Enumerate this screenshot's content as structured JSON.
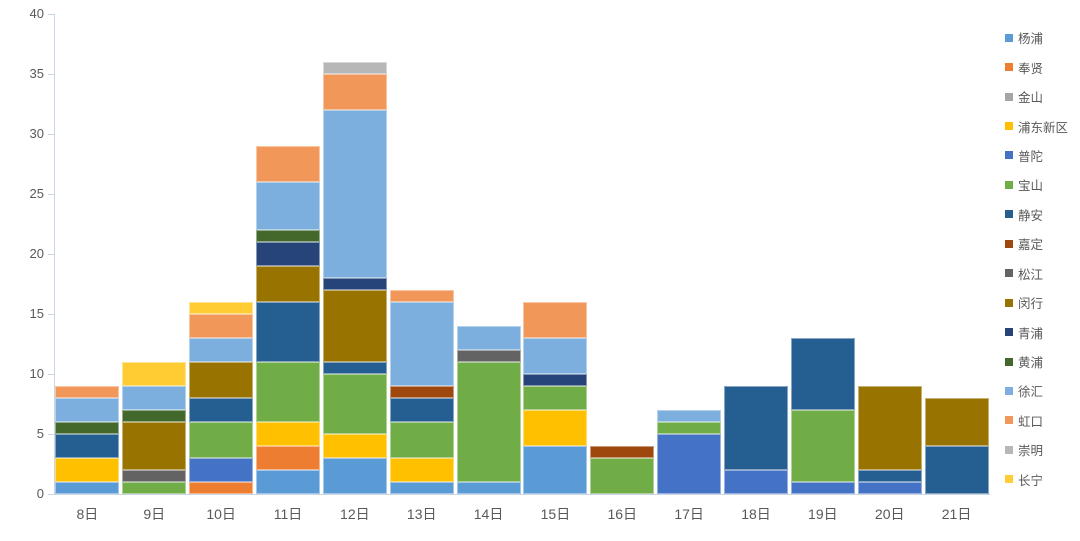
{
  "chart_data": {
    "type": "bar",
    "stacked": true,
    "title": "",
    "xlabel": "",
    "ylabel": "",
    "categories": [
      "8日",
      "9日",
      "10日",
      "11日",
      "12日",
      "13日",
      "14日",
      "15日",
      "16日",
      "17日",
      "18日",
      "19日",
      "20日",
      "21日"
    ],
    "series": [
      {
        "name": "杨浦",
        "color": "#5B9BD5",
        "values": [
          1,
          0,
          0,
          2,
          3,
          1,
          1,
          4,
          0,
          0,
          0,
          0,
          0,
          0
        ]
      },
      {
        "name": "奉贤",
        "color": "#ED7D31",
        "values": [
          0,
          0,
          1,
          2,
          0,
          0,
          0,
          0,
          0,
          0,
          0,
          0,
          0,
          0
        ]
      },
      {
        "name": "金山",
        "color": "#A5A5A5",
        "values": [
          0,
          0,
          0,
          0,
          0,
          0,
          0,
          0,
          0,
          0,
          0,
          0,
          0,
          0
        ]
      },
      {
        "name": "浦东新区",
        "color": "#FFC000",
        "values": [
          2,
          0,
          0,
          2,
          2,
          2,
          0,
          3,
          0,
          0,
          0,
          0,
          0,
          0
        ]
      },
      {
        "name": "普陀",
        "color": "#4472C4",
        "values": [
          0,
          0,
          2,
          0,
          0,
          0,
          0,
          0,
          0,
          5,
          2,
          1,
          1,
          0
        ]
      },
      {
        "name": "宝山",
        "color": "#70AD47",
        "values": [
          0,
          1,
          3,
          5,
          5,
          3,
          10,
          2,
          3,
          1,
          0,
          6,
          0,
          0
        ]
      },
      {
        "name": "静安",
        "color": "#255E91",
        "values": [
          2,
          0,
          2,
          5,
          1,
          2,
          0,
          0,
          0,
          0,
          7,
          6,
          1,
          4
        ]
      },
      {
        "name": "嘉定",
        "color": "#9E480E",
        "values": [
          0,
          0,
          0,
          0,
          0,
          1,
          0,
          0,
          1,
          0,
          0,
          0,
          0,
          0
        ]
      },
      {
        "name": "松江",
        "color": "#636363",
        "values": [
          0,
          1,
          0,
          0,
          0,
          0,
          1,
          0,
          0,
          0,
          0,
          0,
          0,
          0
        ]
      },
      {
        "name": "闵行",
        "color": "#997300",
        "values": [
          0,
          4,
          3,
          3,
          6,
          0,
          0,
          0,
          0,
          0,
          0,
          0,
          7,
          4
        ]
      },
      {
        "name": "青浦",
        "color": "#264478",
        "values": [
          0,
          0,
          0,
          2,
          1,
          0,
          0,
          1,
          0,
          0,
          0,
          0,
          0,
          0
        ]
      },
      {
        "name": "黄浦",
        "color": "#43682B",
        "values": [
          1,
          1,
          0,
          1,
          0,
          0,
          0,
          0,
          0,
          0,
          0,
          0,
          0,
          0
        ]
      },
      {
        "name": "徐汇",
        "color": "#7CAFDD",
        "values": [
          2,
          2,
          2,
          4,
          14,
          7,
          2,
          3,
          0,
          1,
          0,
          0,
          0,
          0
        ]
      },
      {
        "name": "虹口",
        "color": "#F1975A",
        "values": [
          1,
          0,
          2,
          3,
          3,
          1,
          0,
          3,
          0,
          0,
          0,
          0,
          0,
          0
        ]
      },
      {
        "name": "崇明",
        "color": "#B7B7B7",
        "values": [
          0,
          0,
          0,
          0,
          1,
          0,
          0,
          0,
          0,
          0,
          0,
          0,
          0,
          0
        ]
      },
      {
        "name": "长宁",
        "color": "#FFCD33",
        "values": [
          0,
          2,
          1,
          0,
          0,
          0,
          0,
          0,
          0,
          0,
          0,
          0,
          0,
          0
        ]
      }
    ],
    "yticks": [
      0,
      5,
      10,
      15,
      20,
      25,
      30,
      35,
      40
    ],
    "ylim": [
      0,
      40
    ],
    "grid": false,
    "legend_position": "right",
    "axis_color": "#c9d6e4",
    "label_color": "#595959"
  }
}
